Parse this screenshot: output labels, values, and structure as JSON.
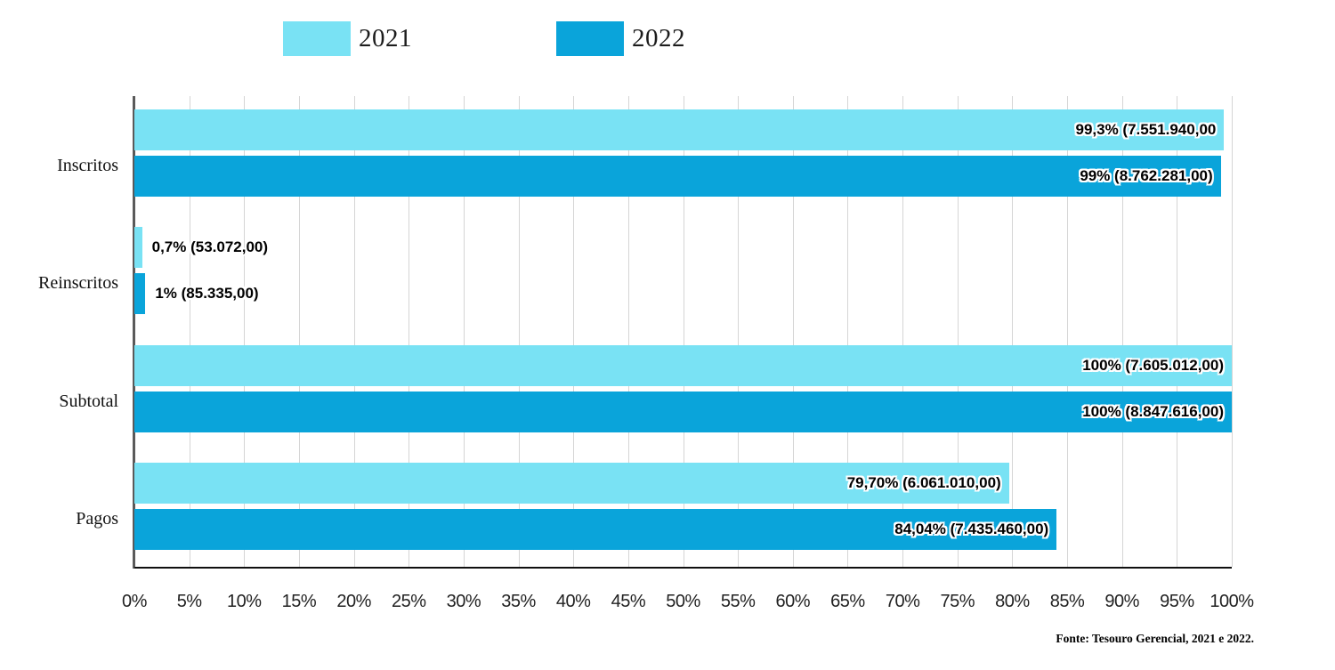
{
  "chart_data": {
    "type": "bar",
    "orientation": "horizontal",
    "categories": [
      "Inscritos",
      "Reinscritos",
      "Subtotal",
      "Pagos"
    ],
    "series": [
      {
        "name": "2021",
        "color": "#79E2F4",
        "values": [
          99.3,
          0.7,
          100,
          79.7
        ],
        "labels": [
          "99,3% (7.551.940,00",
          "0,7% (53.072,00)",
          "100% (7.605.012,00)",
          "79,70% (6.061.010,00)"
        ]
      },
      {
        "name": "2022",
        "color": "#0AA4DA",
        "values": [
          99,
          1,
          100,
          84.04
        ],
        "labels": [
          "99% (8.762.281,00)",
          "1% (85.335,00)",
          "100% (8.847.616,00)",
          "84,04% (7.435.460,00)"
        ]
      }
    ],
    "x_axis": {
      "min": 0,
      "max": 100,
      "step": 5,
      "tick_labels": [
        "0%",
        "5%",
        "10%",
        "15%",
        "20%",
        "25%",
        "30%",
        "35%",
        "40%",
        "45%",
        "50%",
        "55%",
        "60%",
        "65%",
        "70%",
        "75%",
        "80%",
        "85%",
        "90%",
        "95%",
        "100%"
      ]
    },
    "grid": true,
    "legend_position": "top",
    "source": "Fonte: Tesouro Gerencial, 2021 e 2022."
  }
}
